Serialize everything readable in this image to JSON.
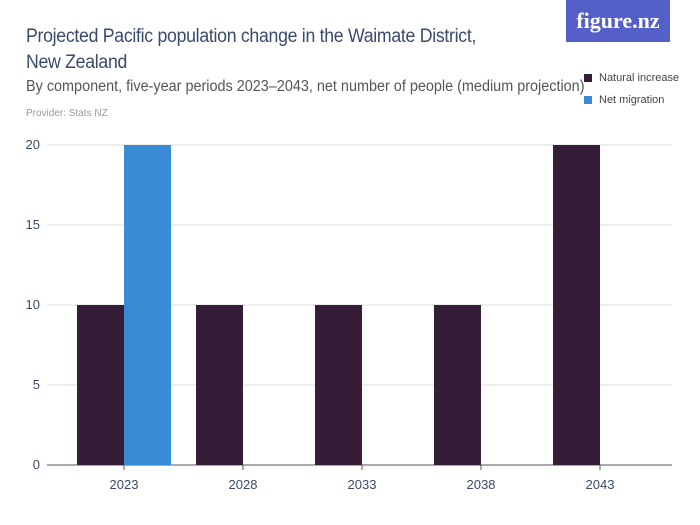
{
  "header": {
    "title": "Projected Pacific population change in the Waimate District, New Zealand",
    "subtitle": "By component, five-year periods 2023–2043, net number of people (medium projection)",
    "provider": "Provider: Stats NZ",
    "logo": "figure.nz"
  },
  "chart_data": {
    "type": "bar",
    "title": "Projected Pacific population change in the Waimate District, New Zealand",
    "subtitle": "By component, five-year periods 2023–2043, net number of people (medium projection)",
    "categories": [
      "2023",
      "2028",
      "2033",
      "2038",
      "2043"
    ],
    "series": [
      {
        "name": "Natural increase",
        "color": "#351c37",
        "values": [
          10,
          10,
          10,
          10,
          20
        ]
      },
      {
        "name": "Net migration",
        "color": "#3a8bd6",
        "values": [
          20,
          0,
          0,
          0,
          0
        ]
      }
    ],
    "yticks": [
      "0",
      "5",
      "10",
      "15",
      "20"
    ],
    "ylim": [
      0,
      20
    ],
    "grid": true,
    "legend": "top-right",
    "xlabel": "",
    "ylabel": ""
  }
}
